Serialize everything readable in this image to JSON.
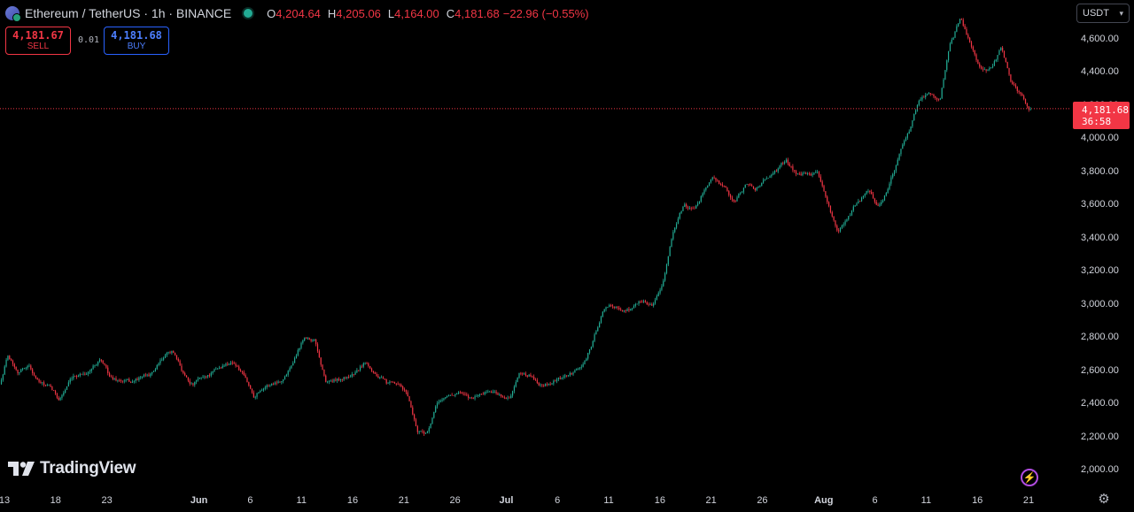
{
  "header": {
    "symbol": "Ethereum / TetherUS · 1h · BINANCE",
    "open_label": "O",
    "open": "4,204.64",
    "high_label": "H",
    "high": "4,205.06",
    "low_label": "L",
    "low": "4,164.00",
    "close_label": "C",
    "close": "4,181.68",
    "change": "−22.96 (−0.55%)"
  },
  "trade": {
    "sell_price": "4,181.67",
    "sell_label": "SELL",
    "spread": "0.01",
    "buy_price": "4,181.68",
    "buy_label": "BUY"
  },
  "currency": "USDT",
  "last_price": {
    "price": "4,181.68",
    "countdown": "36:58"
  },
  "watermark": "TradingView",
  "icons": {
    "logo": "ethereum-logo-icon",
    "live": "live-dot-icon",
    "bolt": "lightning-icon",
    "gear": "gear-icon",
    "chevron": "chevron-down-icon"
  },
  "colors": {
    "up": "#22ab94",
    "down": "#f23645",
    "background": "#000000",
    "buy": "#2962ff"
  },
  "chart_data": {
    "type": "candlestick",
    "yaxis": {
      "range": [
        1950,
        4780
      ],
      "ticks": [
        {
          "value": 2000,
          "label": "2,000.00"
        },
        {
          "value": 2200,
          "label": "2,200.00"
        },
        {
          "value": 2400,
          "label": "2,400.00"
        },
        {
          "value": 2600,
          "label": "2,600.00"
        },
        {
          "value": 2800,
          "label": "2,800.00"
        },
        {
          "value": 3000,
          "label": "3,000.00"
        },
        {
          "value": 3200,
          "label": "3,200.00"
        },
        {
          "value": 3400,
          "label": "3,400.00"
        },
        {
          "value": 3600,
          "label": "3,600.00"
        },
        {
          "value": 3800,
          "label": "3,800.00"
        },
        {
          "value": 4000,
          "label": "4,000.00"
        },
        {
          "value": 4200,
          "label": "4,200.00"
        },
        {
          "value": 4400,
          "label": "4,400.00"
        },
        {
          "value": 4600,
          "label": "4,600.00"
        }
      ]
    },
    "xaxis": {
      "range": [
        "May 13",
        "Aug 21"
      ],
      "ticks": [
        {
          "day": 0,
          "label": "13",
          "bold": false
        },
        {
          "day": 5,
          "label": "18",
          "bold": false
        },
        {
          "day": 10,
          "label": "23",
          "bold": false
        },
        {
          "day": 19,
          "label": "Jun",
          "bold": true
        },
        {
          "day": 24,
          "label": "6",
          "bold": false
        },
        {
          "day": 29,
          "label": "11",
          "bold": false
        },
        {
          "day": 34,
          "label": "16",
          "bold": false
        },
        {
          "day": 39,
          "label": "21",
          "bold": false
        },
        {
          "day": 44,
          "label": "26",
          "bold": false
        },
        {
          "day": 49,
          "label": "Jul",
          "bold": true
        },
        {
          "day": 54,
          "label": "6",
          "bold": false
        },
        {
          "day": 59,
          "label": "11",
          "bold": false
        },
        {
          "day": 64,
          "label": "16",
          "bold": false
        },
        {
          "day": 69,
          "label": "21",
          "bold": false
        },
        {
          "day": 74,
          "label": "26",
          "bold": false
        },
        {
          "day": 80,
          "label": "Aug",
          "bold": true
        },
        {
          "day": 85,
          "label": "6",
          "bold": false
        },
        {
          "day": 90,
          "label": "11",
          "bold": false
        },
        {
          "day": 95,
          "label": "16",
          "bold": false
        },
        {
          "day": 100,
          "label": "21",
          "bold": false
        }
      ]
    },
    "last_price_value": 4181.68,
    "close_path": [
      {
        "day": -0.3,
        "price": 2520
      },
      {
        "day": 0.5,
        "price": 2700
      },
      {
        "day": 1.5,
        "price": 2600
      },
      {
        "day": 2.5,
        "price": 2640
      },
      {
        "day": 3.5,
        "price": 2530
      },
      {
        "day": 4.5,
        "price": 2500
      },
      {
        "day": 5.5,
        "price": 2430
      },
      {
        "day": 6.5,
        "price": 2530
      },
      {
        "day": 7.5,
        "price": 2580
      },
      {
        "day": 8.5,
        "price": 2600
      },
      {
        "day": 9.5,
        "price": 2680
      },
      {
        "day": 10.5,
        "price": 2560
      },
      {
        "day": 11.5,
        "price": 2540
      },
      {
        "day": 12.5,
        "price": 2530
      },
      {
        "day": 13.5,
        "price": 2560
      },
      {
        "day": 14.5,
        "price": 2580
      },
      {
        "day": 15.5,
        "price": 2660
      },
      {
        "day": 16.5,
        "price": 2720
      },
      {
        "day": 17.5,
        "price": 2600
      },
      {
        "day": 18.5,
        "price": 2520
      },
      {
        "day": 19.5,
        "price": 2560
      },
      {
        "day": 20.5,
        "price": 2590
      },
      {
        "day": 21.5,
        "price": 2630
      },
      {
        "day": 22.5,
        "price": 2660
      },
      {
        "day": 23.5,
        "price": 2570
      },
      {
        "day": 24.5,
        "price": 2450
      },
      {
        "day": 25.5,
        "price": 2510
      },
      {
        "day": 26.5,
        "price": 2530
      },
      {
        "day": 27.5,
        "price": 2560
      },
      {
        "day": 28.5,
        "price": 2690
      },
      {
        "day": 29.5,
        "price": 2820
      },
      {
        "day": 30.5,
        "price": 2780
      },
      {
        "day": 31.5,
        "price": 2540
      },
      {
        "day": 32.5,
        "price": 2540
      },
      {
        "day": 33.5,
        "price": 2560
      },
      {
        "day": 34.5,
        "price": 2590
      },
      {
        "day": 35.5,
        "price": 2660
      },
      {
        "day": 36.5,
        "price": 2580
      },
      {
        "day": 37.5,
        "price": 2520
      },
      {
        "day": 38.5,
        "price": 2510
      },
      {
        "day": 39.5,
        "price": 2460
      },
      {
        "day": 40.5,
        "price": 2240
      },
      {
        "day": 41.5,
        "price": 2230
      },
      {
        "day": 42.5,
        "price": 2410
      },
      {
        "day": 43.5,
        "price": 2450
      },
      {
        "day": 44.5,
        "price": 2470
      },
      {
        "day": 45.5,
        "price": 2430
      },
      {
        "day": 46.5,
        "price": 2460
      },
      {
        "day": 47.5,
        "price": 2480
      },
      {
        "day": 48.5,
        "price": 2460
      },
      {
        "day": 49.5,
        "price": 2430
      },
      {
        "day": 50.5,
        "price": 2580
      },
      {
        "day": 51.5,
        "price": 2570
      },
      {
        "day": 52.5,
        "price": 2520
      },
      {
        "day": 53.5,
        "price": 2530
      },
      {
        "day": 54.5,
        "price": 2550
      },
      {
        "day": 55.5,
        "price": 2580
      },
      {
        "day": 56.5,
        "price": 2620
      },
      {
        "day": 57.5,
        "price": 2760
      },
      {
        "day": 58.5,
        "price": 2950
      },
      {
        "day": 59.5,
        "price": 3000
      },
      {
        "day": 60.5,
        "price": 2960
      },
      {
        "day": 61.5,
        "price": 2980
      },
      {
        "day": 62.5,
        "price": 3030
      },
      {
        "day": 63.5,
        "price": 2990
      },
      {
        "day": 64.5,
        "price": 3160
      },
      {
        "day": 65.5,
        "price": 3450
      },
      {
        "day": 66.5,
        "price": 3600
      },
      {
        "day": 67.5,
        "price": 3560
      },
      {
        "day": 68.5,
        "price": 3700
      },
      {
        "day": 69.5,
        "price": 3770
      },
      {
        "day": 70.5,
        "price": 3700
      },
      {
        "day": 71.5,
        "price": 3620
      },
      {
        "day": 72.5,
        "price": 3720
      },
      {
        "day": 73.5,
        "price": 3700
      },
      {
        "day": 74.5,
        "price": 3760
      },
      {
        "day": 75.5,
        "price": 3800
      },
      {
        "day": 76.5,
        "price": 3870
      },
      {
        "day": 77.5,
        "price": 3790
      },
      {
        "day": 78.5,
        "price": 3780
      },
      {
        "day": 79.5,
        "price": 3800
      },
      {
        "day": 80.5,
        "price": 3620
      },
      {
        "day": 81.5,
        "price": 3420
      },
      {
        "day": 82.5,
        "price": 3520
      },
      {
        "day": 83.5,
        "price": 3620
      },
      {
        "day": 84.5,
        "price": 3680
      },
      {
        "day": 85.5,
        "price": 3600
      },
      {
        "day": 86.5,
        "price": 3700
      },
      {
        "day": 87.5,
        "price": 3900
      },
      {
        "day": 88.5,
        "price": 4050
      },
      {
        "day": 89.5,
        "price": 4250
      },
      {
        "day": 90.5,
        "price": 4280
      },
      {
        "day": 91.5,
        "price": 4250
      },
      {
        "day": 92.5,
        "price": 4560
      },
      {
        "day": 93.5,
        "price": 4720
      },
      {
        "day": 94.5,
        "price": 4560
      },
      {
        "day": 95.5,
        "price": 4410
      },
      {
        "day": 96.5,
        "price": 4420
      },
      {
        "day": 97.5,
        "price": 4550
      },
      {
        "day": 98.5,
        "price": 4340
      },
      {
        "day": 99.5,
        "price": 4250
      },
      {
        "day": 100.2,
        "price": 4182
      }
    ]
  }
}
